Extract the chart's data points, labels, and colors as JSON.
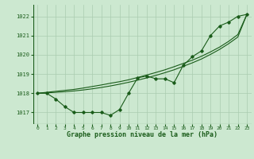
{
  "title": "Graphe pression niveau de la mer (hPa)",
  "background_color": "#cce8d0",
  "grid_color": "#aaccb0",
  "line_color": "#1a5c1a",
  "marker_color": "#1a5c1a",
  "xlim": [
    -0.5,
    23.5
  ],
  "ylim": [
    1016.4,
    1022.6
  ],
  "yticks": [
    1017,
    1018,
    1019,
    1020,
    1021,
    1022
  ],
  "xticks": [
    0,
    1,
    2,
    3,
    4,
    5,
    6,
    7,
    8,
    9,
    10,
    11,
    12,
    13,
    14,
    15,
    16,
    17,
    18,
    19,
    20,
    21,
    22,
    23
  ],
  "series1": [
    1018.0,
    1018.0,
    1017.7,
    1017.3,
    1017.0,
    1017.0,
    1017.0,
    1017.0,
    1016.85,
    1017.15,
    1018.0,
    1018.8,
    1018.9,
    1018.75,
    1018.75,
    1018.55,
    1019.45,
    1019.9,
    1020.2,
    1021.0,
    1021.5,
    1021.7,
    1022.0,
    1022.1
  ],
  "series_smooth1": [
    1018.0,
    1018.05,
    1018.1,
    1018.15,
    1018.2,
    1018.27,
    1018.35,
    1018.43,
    1018.52,
    1018.6,
    1018.7,
    1018.82,
    1018.95,
    1019.08,
    1019.22,
    1019.38,
    1019.55,
    1019.72,
    1019.92,
    1020.15,
    1020.4,
    1020.7,
    1021.05,
    1022.1
  ],
  "series_smooth2": [
    1018.0,
    1018.02,
    1018.05,
    1018.08,
    1018.12,
    1018.17,
    1018.23,
    1018.3,
    1018.38,
    1018.47,
    1018.57,
    1018.68,
    1018.8,
    1018.93,
    1019.07,
    1019.22,
    1019.4,
    1019.58,
    1019.78,
    1020.02,
    1020.28,
    1020.58,
    1020.92,
    1022.1
  ]
}
